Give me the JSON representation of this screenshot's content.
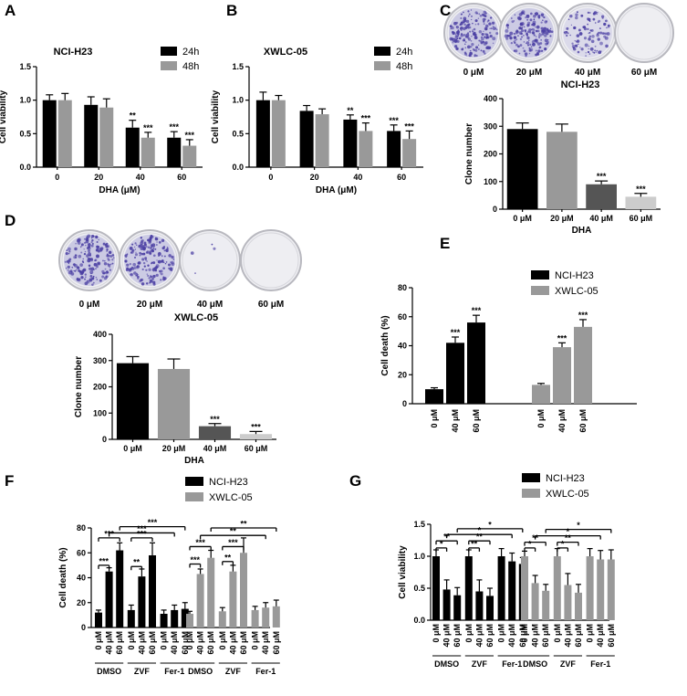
{
  "panel_labels": [
    "A",
    "B",
    "C",
    "D",
    "E",
    "F",
    "G"
  ],
  "colors": {
    "black": "#000000",
    "grey": "#999999",
    "dark_grey": "#555555",
    "light_grey": "#cccccc"
  },
  "dish_images": {
    "C": {
      "labels": [
        "0 μM",
        "20 μM",
        "40 μM",
        "60 μM"
      ],
      "density": [
        1.0,
        0.95,
        0.55,
        0.0
      ]
    },
    "D": {
      "labels": [
        "0 μM",
        "20 μM",
        "40 μM",
        "60 μM"
      ],
      "density": [
        1.0,
        0.95,
        0.02,
        0.0
      ]
    }
  },
  "chart_data": [
    {
      "panel": "A",
      "type": "bar",
      "title": "NCI-H23",
      "xlabel": "DHA (μM)",
      "ylabel": "Cell viability",
      "ylim": [
        0,
        1.5
      ],
      "yticks": [
        "0.0",
        "0.5",
        "1.0",
        "1.5"
      ],
      "categories": [
        "0",
        "20",
        "40",
        "60"
      ],
      "legend": [
        "24h",
        "48h"
      ],
      "series": [
        {
          "name": "24h",
          "values": [
            1.0,
            0.93,
            0.59,
            0.44
          ],
          "errors": [
            0.08,
            0.12,
            0.11,
            0.09
          ],
          "sig": [
            "",
            "",
            "**",
            "***"
          ]
        },
        {
          "name": "48h",
          "values": [
            1.0,
            0.89,
            0.44,
            0.32
          ],
          "errors": [
            0.1,
            0.13,
            0.08,
            0.09
          ],
          "sig": [
            "",
            "",
            "***",
            "***"
          ]
        }
      ]
    },
    {
      "panel": "B",
      "type": "bar",
      "title": "XWLC-05",
      "xlabel": "DHA (μM)",
      "ylabel": "Cell viability",
      "ylim": [
        0,
        1.5
      ],
      "yticks": [
        "0.0",
        "0.5",
        "1.0",
        "1.5"
      ],
      "categories": [
        "0",
        "20",
        "40",
        "60"
      ],
      "legend": [
        "24h",
        "48h"
      ],
      "series": [
        {
          "name": "24h",
          "values": [
            1.0,
            0.84,
            0.71,
            0.54
          ],
          "errors": [
            0.12,
            0.08,
            0.07,
            0.09
          ],
          "sig": [
            "",
            "",
            "**",
            "***"
          ]
        },
        {
          "name": "48h",
          "values": [
            1.0,
            0.79,
            0.54,
            0.42
          ],
          "errors": [
            0.07,
            0.08,
            0.12,
            0.12
          ],
          "sig": [
            "",
            "",
            "***",
            "***"
          ]
        }
      ]
    },
    {
      "panel": "C",
      "type": "bar",
      "title": "NCI-H23",
      "xlabel": "DHA",
      "ylabel": "Clone number",
      "ylim": [
        0,
        400
      ],
      "yticks": [
        "0",
        "100",
        "200",
        "300",
        "400"
      ],
      "categories": [
        "0 μM",
        "20 μM",
        "40 μM",
        "60 μM"
      ],
      "values": [
        290,
        280,
        90,
        45
      ],
      "errors": [
        22,
        28,
        12,
        12
      ],
      "sig": [
        "",
        "",
        "***",
        "***"
      ]
    },
    {
      "panel": "D",
      "type": "bar",
      "title": "XWLC-05",
      "xlabel": "DHA",
      "ylabel": "Clone number",
      "ylim": [
        0,
        400
      ],
      "yticks": [
        "0",
        "100",
        "200",
        "300",
        "400"
      ],
      "categories": [
        "0 μM",
        "20 μM",
        "40 μM",
        "60 μM"
      ],
      "values": [
        290,
        268,
        50,
        20
      ],
      "errors": [
        25,
        38,
        10,
        10
      ],
      "sig": [
        "",
        "",
        "***",
        "***"
      ]
    },
    {
      "panel": "E",
      "type": "bar",
      "ylabel": "Cell death (%)",
      "ylim": [
        0,
        80
      ],
      "yticks": [
        "0",
        "20",
        "40",
        "60",
        "80"
      ],
      "legend": [
        "NCI-H23",
        "XWLC-05"
      ],
      "groups": [
        {
          "name": "NCI-H23",
          "categories": [
            "0 μM",
            "40 μM",
            "60 μM"
          ],
          "values": [
            10,
            42,
            56
          ],
          "errors": [
            1,
            4,
            5
          ],
          "sig": [
            "",
            "***",
            "***"
          ]
        },
        {
          "name": "XWLC-05",
          "categories": [
            "0 μM",
            "40 μM",
            "60 μM"
          ],
          "values": [
            13,
            39,
            53
          ],
          "errors": [
            1,
            3,
            5
          ],
          "sig": [
            "",
            "***",
            "***"
          ]
        }
      ]
    },
    {
      "panel": "F",
      "type": "bar",
      "ylabel": "Cell death (%)",
      "ylim": [
        0,
        80
      ],
      "yticks": [
        "0",
        "20",
        "40",
        "60",
        "80"
      ],
      "legend": [
        "NCI-H23",
        "XWLC-05"
      ],
      "doses": [
        "0 μM",
        "40 μM",
        "60 μM"
      ],
      "treatments": [
        "DMSO",
        "ZVF",
        "Fer-1"
      ],
      "series": [
        {
          "name": "NCI-H23",
          "values": [
            12,
            45,
            62,
            14,
            41,
            58,
            11,
            14,
            15
          ],
          "errors": [
            2,
            3,
            6,
            4,
            6,
            10,
            3,
            4,
            5
          ]
        },
        {
          "name": "XWLC-05",
          "values": [
            11,
            43,
            56,
            13,
            45,
            60,
            14,
            16,
            17
          ],
          "errors": [
            2,
            4,
            6,
            3,
            5,
            12,
            3,
            4,
            5
          ]
        }
      ],
      "brackets": [
        {
          "series": 0,
          "from": 0,
          "to": 1,
          "label": "***",
          "y": 50
        },
        {
          "series": 0,
          "from": 3,
          "to": 4,
          "label": "**",
          "y": 49
        },
        {
          "series": 0,
          "from": 0,
          "to": 2,
          "label": "***",
          "y": 72
        },
        {
          "series": 0,
          "from": 3,
          "to": 5,
          "label": "***",
          "y": 72
        },
        {
          "series": 0,
          "from": 1,
          "to": 7,
          "label": "***",
          "y": 76
        },
        {
          "series": 0,
          "from": 2,
          "to": 8,
          "label": "***",
          "y": 81
        },
        {
          "series": 1,
          "from": 0,
          "to": 1,
          "label": "***",
          "y": 51
        },
        {
          "series": 1,
          "from": 3,
          "to": 4,
          "label": "**",
          "y": 53
        },
        {
          "series": 1,
          "from": 0,
          "to": 2,
          "label": "***",
          "y": 65
        },
        {
          "series": 1,
          "from": 3,
          "to": 5,
          "label": "***",
          "y": 65
        },
        {
          "series": 1,
          "from": 1,
          "to": 7,
          "label": "**",
          "y": 74
        },
        {
          "series": 1,
          "from": 2,
          "to": 8,
          "label": "**",
          "y": 80
        }
      ]
    },
    {
      "panel": "G",
      "type": "bar",
      "ylabel": "Cell viability",
      "ylim": [
        0,
        1.5
      ],
      "yticks": [
        "0.0",
        "0.5",
        "1.0",
        "1.5"
      ],
      "legend": [
        "NCI-H23",
        "XWLC-05"
      ],
      "doses": [
        "0 μM",
        "40 μM",
        "60 μM"
      ],
      "treatments": [
        "DMSO",
        "ZVF",
        "Fer-1"
      ],
      "series": [
        {
          "name": "NCI-H23",
          "values": [
            1.0,
            0.48,
            0.39,
            1.0,
            0.45,
            0.38,
            1.0,
            0.92,
            0.88
          ],
          "errors": [
            0.1,
            0.15,
            0.12,
            0.1,
            0.18,
            0.12,
            0.12,
            0.13,
            0.1
          ]
        },
        {
          "name": "XWLC-05",
          "values": [
            1.0,
            0.58,
            0.46,
            1.0,
            0.55,
            0.43,
            1.0,
            0.95,
            0.95
          ],
          "errors": [
            0.08,
            0.12,
            0.1,
            0.12,
            0.18,
            0.13,
            0.12,
            0.14,
            0.15
          ]
        }
      ],
      "brackets": [
        {
          "series": 0,
          "from": 0,
          "to": 1,
          "label": "*",
          "y": 1.13
        },
        {
          "series": 0,
          "from": 3,
          "to": 4,
          "label": "**",
          "y": 1.13
        },
        {
          "series": 0,
          "from": 0,
          "to": 2,
          "label": "**",
          "y": 1.24
        },
        {
          "series": 0,
          "from": 3,
          "to": 5,
          "label": "**",
          "y": 1.24
        },
        {
          "series": 0,
          "from": 1,
          "to": 7,
          "label": "*",
          "y": 1.34
        },
        {
          "series": 0,
          "from": 2,
          "to": 8,
          "label": "*",
          "y": 1.43
        },
        {
          "series": 1,
          "from": 0,
          "to": 1,
          "label": "*",
          "y": 1.13
        },
        {
          "series": 1,
          "from": 3,
          "to": 4,
          "label": "*",
          "y": 1.13
        },
        {
          "series": 1,
          "from": 0,
          "to": 2,
          "label": "**",
          "y": 1.22
        },
        {
          "series": 1,
          "from": 3,
          "to": 5,
          "label": "**",
          "y": 1.22
        },
        {
          "series": 1,
          "from": 1,
          "to": 7,
          "label": "*",
          "y": 1.32
        },
        {
          "series": 1,
          "from": 2,
          "to": 8,
          "label": "*",
          "y": 1.42
        }
      ]
    }
  ]
}
